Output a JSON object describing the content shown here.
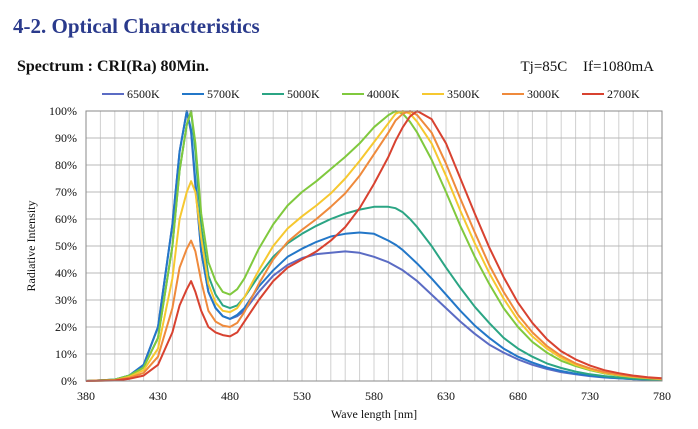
{
  "heading": "4-2. Optical Characteristics",
  "subtitle": "Spectrum : CRI(Ra) 80Min.",
  "conditions": {
    "tj": "Tj=85C",
    "if": "If=1080mA"
  },
  "chart_data": {
    "type": "line",
    "xlabel": "Wave length [nm]",
    "ylabel": "Radiative Intensity",
    "xlim": [
      380,
      780
    ],
    "ylim": [
      0,
      100
    ],
    "x_ticks": [
      380,
      430,
      480,
      530,
      580,
      630,
      680,
      730,
      780
    ],
    "y_ticks": [
      "0%",
      "10%",
      "20%",
      "30%",
      "40%",
      "50%",
      "60%",
      "70%",
      "80%",
      "90%",
      "100%"
    ],
    "grid": true,
    "legend_position": "top",
    "x": [
      380,
      400,
      410,
      420,
      430,
      440,
      445,
      450,
      453,
      456,
      460,
      465,
      470,
      475,
      480,
      485,
      490,
      500,
      510,
      520,
      530,
      540,
      550,
      560,
      570,
      580,
      590,
      595,
      600,
      605,
      610,
      620,
      630,
      640,
      650,
      660,
      670,
      680,
      690,
      700,
      710,
      720,
      730,
      740,
      750,
      760,
      770,
      780
    ],
    "series": [
      {
        "name": "6500K",
        "color": "#5b6cc4",
        "values": [
          0,
          0.5,
          2,
          6,
          20,
          58,
          85,
          100,
          92,
          72,
          48,
          33,
          27,
          24,
          23,
          24,
          26,
          33,
          39,
          43,
          45.5,
          47,
          47.5,
          48,
          47.5,
          46,
          44,
          42.5,
          41,
          39,
          37,
          32,
          27,
          22,
          17.5,
          13.5,
          10.5,
          8,
          6,
          4.5,
          3.3,
          2.5,
          1.8,
          1.3,
          1,
          0.7,
          0.5,
          0.3
        ]
      },
      {
        "name": "5700K",
        "color": "#2377c8",
        "values": [
          0,
          0.5,
          2,
          6,
          20,
          58,
          85,
          100,
          93,
          74,
          48,
          33,
          27,
          24,
          23,
          24.5,
          27,
          35,
          41,
          46,
          49,
          51.5,
          53.5,
          54.5,
          55,
          54.5,
          52,
          50.5,
          48.5,
          46,
          43.5,
          38,
          32,
          26,
          20.5,
          16,
          12,
          9,
          6.8,
          5,
          3.7,
          2.7,
          2,
          1.4,
          1,
          0.7,
          0.5,
          0.3
        ]
      },
      {
        "name": "5000K",
        "color": "#2ba584",
        "values": [
          0,
          0.5,
          2,
          5,
          16,
          50,
          78,
          95,
          100,
          85,
          57,
          39,
          32,
          28,
          27,
          28,
          31,
          39,
          46,
          51,
          54.5,
          57.5,
          60,
          62,
          63.5,
          64.5,
          64.5,
          64,
          62.5,
          60,
          57,
          50,
          42,
          34.5,
          27.5,
          21.5,
          16,
          12,
          9,
          6.5,
          4.8,
          3.5,
          2.5,
          1.8,
          1.3,
          0.9,
          0.6,
          0.4
        ]
      },
      {
        "name": "4000K",
        "color": "#80c93e",
        "values": [
          0,
          0.5,
          2,
          5,
          16,
          50,
          78,
          95,
          100,
          88,
          62,
          44,
          37,
          33,
          32,
          34,
          38,
          49,
          58,
          65,
          70,
          74,
          78.5,
          83,
          88,
          94,
          98.5,
          100,
          99,
          96,
          92,
          82,
          70,
          57.5,
          46,
          36,
          27,
          20,
          14.5,
          10.5,
          7.5,
          5.5,
          4,
          2.8,
          2,
          1.4,
          1,
          0.6
        ]
      },
      {
        "name": "3500K",
        "color": "#f6c830",
        "values": [
          0,
          0.3,
          1.5,
          4,
          12,
          38,
          60,
          70,
          74,
          70,
          53,
          36,
          29,
          26,
          25.5,
          27,
          31,
          41,
          50,
          56.5,
          61,
          65,
          69.5,
          75,
          81.5,
          88.5,
          95.5,
          99,
          100,
          99,
          96,
          88,
          76,
          63,
          51,
          40,
          30.5,
          22.5,
          16.5,
          12,
          8.5,
          6,
          4.3,
          3,
          2.2,
          1.5,
          1.1,
          0.7
        ]
      },
      {
        "name": "3000K",
        "color": "#ef8a3c",
        "values": [
          0,
          0.3,
          1.2,
          3,
          9,
          27,
          42,
          49,
          52,
          48,
          37,
          26,
          22,
          20.5,
          20,
          21.5,
          25.5,
          36,
          45,
          51.5,
          56,
          60,
          64.5,
          69.5,
          76,
          84,
          92,
          96.5,
          99,
          100,
          98.5,
          92,
          80.5,
          67.5,
          55,
          43,
          33,
          24.5,
          18,
          13,
          9.3,
          6.5,
          4.7,
          3.3,
          2.4,
          1.7,
          1.2,
          0.8
        ]
      },
      {
        "name": "2700K",
        "color": "#d84230",
        "values": [
          0,
          0.2,
          0.8,
          2,
          6,
          18,
          28,
          34,
          37,
          33,
          26,
          20,
          18,
          17,
          16.5,
          18,
          22,
          30,
          37,
          42,
          45,
          48,
          52,
          57,
          64,
          73,
          83,
          89,
          94,
          98,
          100,
          97,
          88,
          75,
          62,
          49.5,
          38.5,
          29,
          21.5,
          15.5,
          11,
          8,
          5.7,
          4,
          2.9,
          2,
          1.4,
          1
        ]
      }
    ]
  }
}
